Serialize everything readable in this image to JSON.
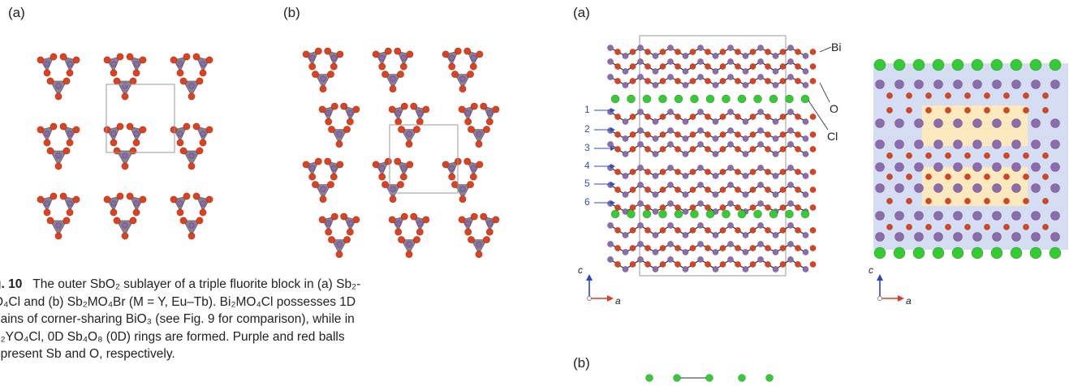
{
  "figure10": {
    "panel_a_label": "(a)",
    "panel_b_label": "(b)",
    "caption": {
      "fig_label": "g. 10",
      "line1": "The outer SbO₂ sublayer of a triple fluorite block in (a) Sb₂-",
      "line2": "O₄Cl and (b) Sb₂MO₄Br (M = Y, Eu–Tb). Bi₂MO₄Cl possesses 1D",
      "line3": "hains of corner-sharing BiO₃ (see Fig. 9 for comparison), while in",
      "line4": "b₂YO₄Cl, 0D Sb₄O₈ (0D) rings are formed. Purple and red balls",
      "line5": "epresent Sb and O, respectively."
    }
  },
  "figure_right": {
    "panel_a_label": "(a)",
    "panel_b_label": "(b)",
    "atom_labels": [
      "Bi",
      "O",
      "Cl"
    ],
    "row_labels": [
      "1",
      "2",
      "3",
      "4",
      "5",
      "6"
    ],
    "axis": {
      "vertical": "c",
      "horizontal": "a"
    }
  },
  "colors": {
    "sb_purple": "#8e6bb0",
    "o_red": "#e0401c",
    "cl_green": "#33cc33",
    "polyhedra_gray": "#8a7f92",
    "row_arrow_blue": "#2f4cc4",
    "layer_blue": "#c6d1ee",
    "layer_orange": "#fde9bd",
    "axis_red": "#e03a2c",
    "axis_blue": "#2b45c8"
  }
}
